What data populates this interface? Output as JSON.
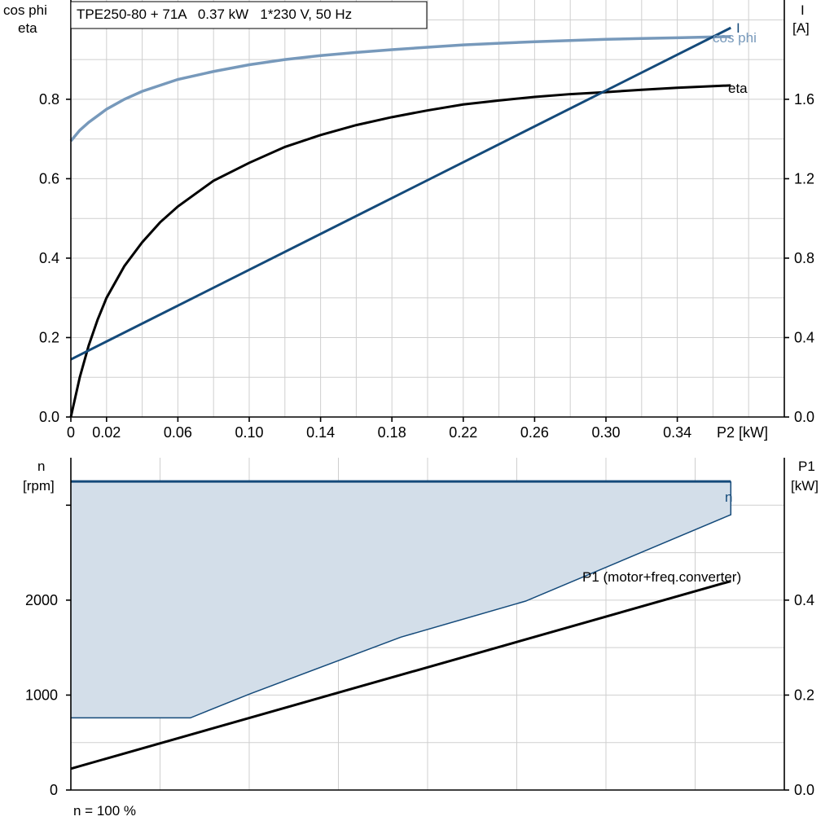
{
  "title": "TPE250-80 + 71A   0.37 kW   1*230 V, 50 Hz",
  "footer": "n = 100 %",
  "colors": {
    "cosphi": "#7799bb",
    "eta": "#000000",
    "current": "#144a7a",
    "n_fill": "#d3dee9",
    "n_line": "#144a7a",
    "p1": "#000000",
    "grid": "#cfcfcf"
  },
  "chart_data": [
    {
      "type": "line",
      "x_label": "P2 [kW]",
      "y_left_label": [
        "cos phi",
        "eta"
      ],
      "y_right_label": [
        "I",
        "[A]"
      ],
      "x_ticks": [
        "0",
        "0.02",
        "0.06",
        "0.10",
        "0.14",
        "0.18",
        "0.22",
        "0.26",
        "0.30",
        "0.34"
      ],
      "y_left_ticks": [
        "0.0",
        "0.2",
        "0.4",
        "0.6",
        "0.8"
      ],
      "y_right_ticks": [
        "0.0",
        "0.4",
        "0.8",
        "1.2",
        "1.6"
      ],
      "x_range": [
        0,
        0.4
      ],
      "y_left_range": [
        0,
        1.05
      ],
      "y_right_range": [
        0,
        2.1
      ],
      "grid": true,
      "series": [
        {
          "name": "cos phi",
          "axis": "left",
          "x": [
            0,
            0.005,
            0.01,
            0.02,
            0.03,
            0.04,
            0.06,
            0.08,
            0.1,
            0.12,
            0.14,
            0.16,
            0.18,
            0.2,
            0.22,
            0.24,
            0.26,
            0.28,
            0.3,
            0.32,
            0.34,
            0.37
          ],
          "y": [
            0.695,
            0.722,
            0.742,
            0.775,
            0.8,
            0.82,
            0.85,
            0.87,
            0.887,
            0.9,
            0.91,
            0.918,
            0.925,
            0.931,
            0.937,
            0.941,
            0.945,
            0.948,
            0.951,
            0.953,
            0.955,
            0.958
          ]
        },
        {
          "name": "eta",
          "axis": "left",
          "x": [
            0,
            0.005,
            0.01,
            0.015,
            0.02,
            0.03,
            0.04,
            0.05,
            0.06,
            0.08,
            0.1,
            0.12,
            0.14,
            0.16,
            0.18,
            0.2,
            0.22,
            0.24,
            0.26,
            0.28,
            0.3,
            0.32,
            0.34,
            0.37
          ],
          "y": [
            0,
            0.1,
            0.18,
            0.245,
            0.3,
            0.38,
            0.44,
            0.49,
            0.53,
            0.595,
            0.64,
            0.68,
            0.71,
            0.735,
            0.755,
            0.772,
            0.787,
            0.797,
            0.806,
            0.813,
            0.818,
            0.824,
            0.829,
            0.835
          ]
        },
        {
          "name": "I",
          "axis": "right",
          "x": [
            0,
            0.37
          ],
          "y": [
            0.29,
            1.96
          ]
        }
      ],
      "annotations": [
        "cos phi",
        "I",
        "eta"
      ]
    },
    {
      "type": "area",
      "x_range": [
        0,
        0.4
      ],
      "y_left_label": [
        "n",
        "[rpm]"
      ],
      "y_right_label": [
        "P1",
        "[kW]"
      ],
      "y_left_ticks": [
        "0",
        "1000",
        "2000"
      ],
      "y_right_ticks": [
        "0.0",
        "0.2",
        "0.4"
      ],
      "y_left_range": [
        0,
        3500
      ],
      "y_right_range": [
        0,
        0.7
      ],
      "grid": true,
      "series": [
        {
          "name": "n",
          "axis": "left",
          "x_upper": [
            0,
            0.37
          ],
          "y_upper": [
            3250,
            3250
          ],
          "x_lower": [
            0,
            0.067,
            0.1,
            0.185,
            0.255,
            0.37
          ],
          "y_lower": [
            760,
            760,
            1010,
            1610,
            1990,
            2900
          ]
        },
        {
          "name": "P1 (motor+freq.converter)",
          "axis": "right",
          "x": [
            0,
            0.37
          ],
          "y": [
            0.045,
            0.44
          ]
        }
      ],
      "annotations": [
        "n",
        "P1 (motor+freq.converter)"
      ]
    }
  ]
}
